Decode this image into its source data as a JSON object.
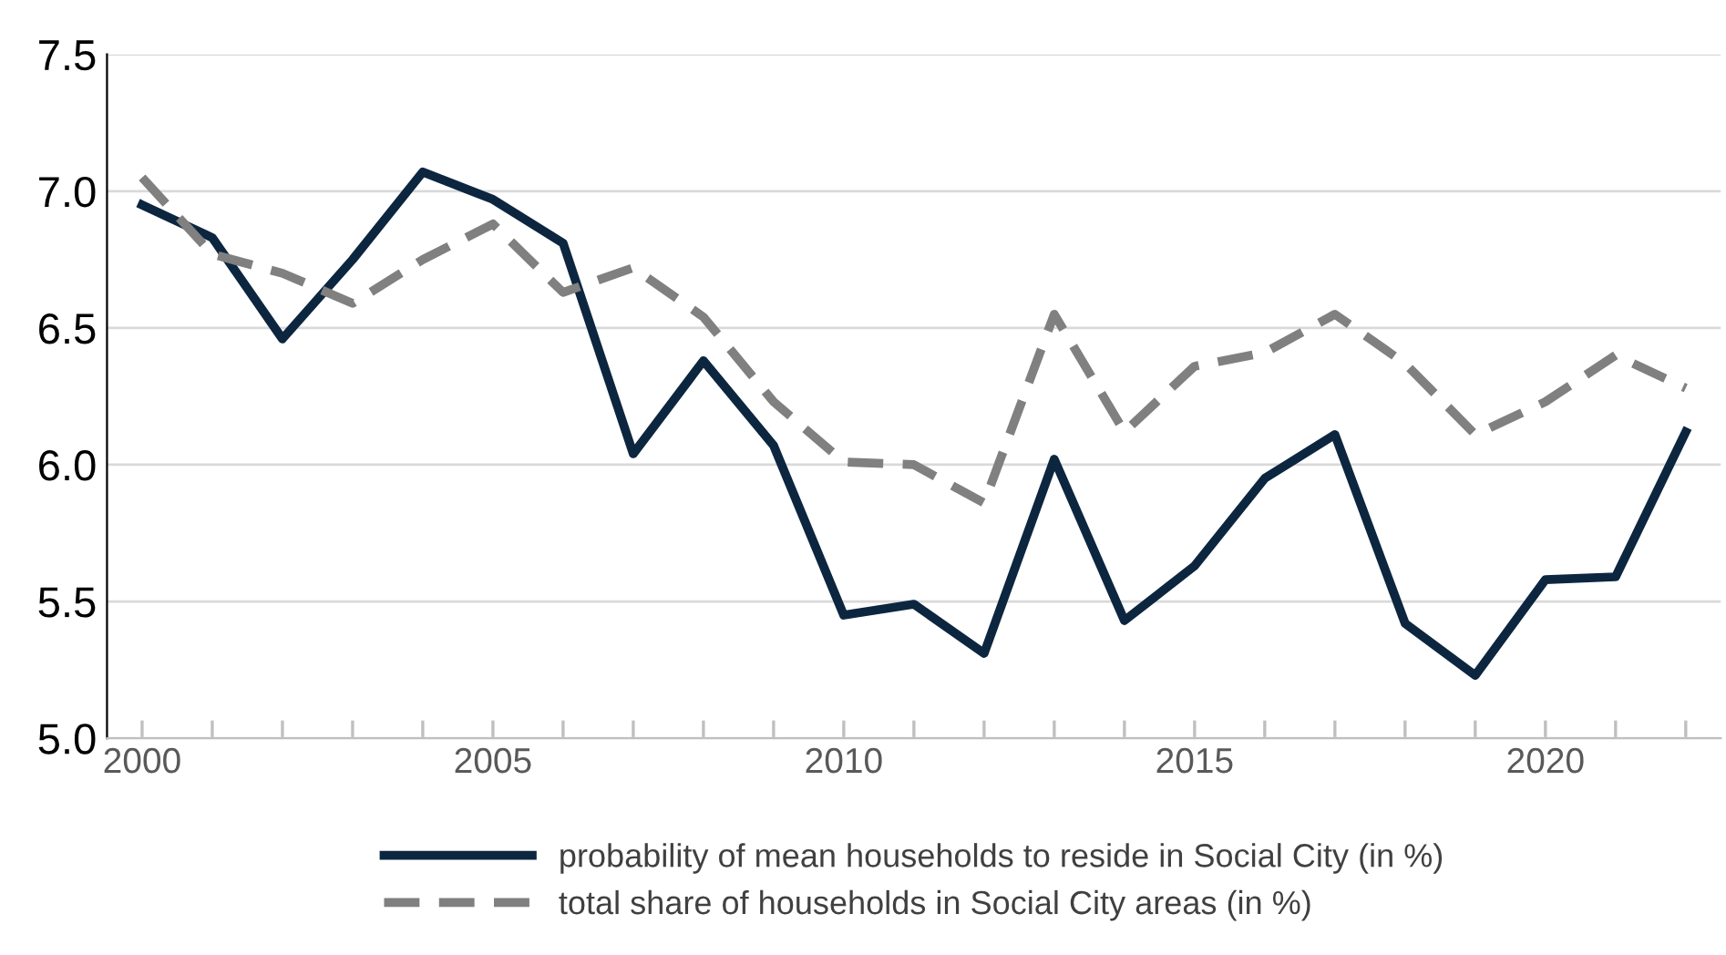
{
  "chart_data": {
    "type": "line",
    "x": [
      2000,
      2001,
      2002,
      2003,
      2004,
      2005,
      2006,
      2007,
      2008,
      2009,
      2010,
      2011,
      2012,
      2013,
      2014,
      2015,
      2016,
      2017,
      2018,
      2019,
      2020,
      2021,
      2022
    ],
    "series": [
      {
        "name": "probability of mean households to reside in Social City (in %)",
        "color": "#0d2640",
        "line_style": "solid",
        "values": [
          6.95,
          6.83,
          6.46,
          6.75,
          7.07,
          6.97,
          6.81,
          6.04,
          6.38,
          6.07,
          5.45,
          5.49,
          5.31,
          6.02,
          5.43,
          5.63,
          5.95,
          6.11,
          5.42,
          5.23,
          5.58,
          5.59,
          6.12
        ]
      },
      {
        "name": "total share of households in Social City areas (in %)",
        "color": "#808080",
        "line_style": "dashed",
        "values": [
          7.05,
          6.77,
          6.7,
          6.59,
          6.75,
          6.88,
          6.63,
          6.72,
          6.54,
          6.23,
          6.01,
          6.0,
          5.86,
          6.55,
          6.12,
          6.36,
          6.41,
          6.55,
          6.37,
          6.11,
          6.23,
          6.4,
          6.28
        ]
      }
    ],
    "xlim": [
      1999.5,
      2022.5
    ],
    "xticks": [
      2000,
      2005,
      2010,
      2015,
      2020
    ],
    "ylim": [
      5.0,
      7.5
    ],
    "yticks": [
      {
        "value": 5.0,
        "label": "5.0"
      },
      {
        "value": 5.5,
        "label": "5.5"
      },
      {
        "value": 6.0,
        "label": "6.0"
      },
      {
        "value": 6.5,
        "label": "6.5"
      },
      {
        "value": 7.0,
        "label": "7.0"
      },
      {
        "value": 7.5,
        "label": "7.5"
      }
    ],
    "grid": "y",
    "legend": "bottom",
    "marker": "none"
  }
}
